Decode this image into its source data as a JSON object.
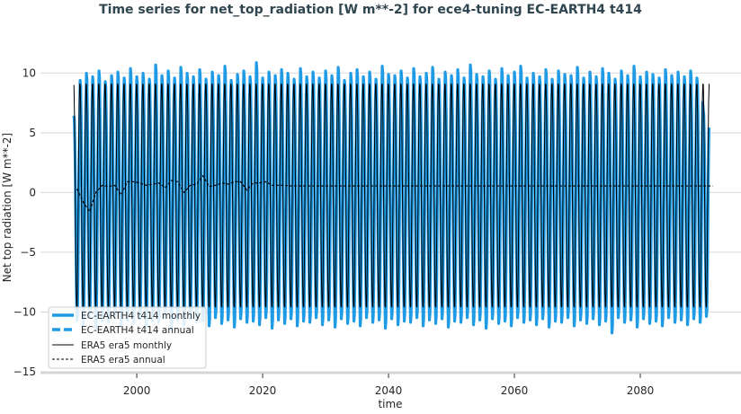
{
  "chart_data": {
    "type": "line",
    "title": "Time series for net_top_radiation [W m**-2] for ece4-tuning EC-EARTH4 t414",
    "xlabel": "time",
    "ylabel": "Net top radiation [W m**-2]",
    "xlim": [
      1984.7,
      2096
    ],
    "ylim": [
      -15,
      12.8
    ],
    "xticks": [
      2000,
      2020,
      2040,
      2060,
      2080
    ],
    "xtick_labels": [
      "2000",
      "2020",
      "2040",
      "2060",
      "2080"
    ],
    "yticks": [
      -15,
      -10,
      -5,
      0,
      5,
      10
    ],
    "ytick_labels": [
      "−15",
      "−10",
      "−5",
      "0",
      "5",
      "10"
    ],
    "grid": "horizontal",
    "legend_position": "bottom-left",
    "colors": {
      "ecearth": "#1f9be6",
      "era5": "#000000",
      "grid": "#d9d9d9"
    },
    "series": [
      {
        "name": "EC-EARTH4 t414 monthly",
        "style": "solid-thick",
        "start_year": 1990,
        "annual_peak_max": [
          6.5,
          9.5,
          10.1,
          9.8,
          10.3,
          9.4,
          9.9,
          10.2,
          9.7,
          10.5,
          9.8,
          10.1,
          9.6,
          10.8,
          9.9,
          10.3,
          9.7,
          10.6,
          10.1,
          9.8,
          10.4,
          9.6,
          10.2,
          9.9,
          10.7,
          9.5,
          10.0,
          10.3,
          9.8,
          11.0,
          9.7,
          10.2,
          9.9,
          10.4,
          10.1,
          9.6,
          10.5,
          9.8,
          10.2,
          9.7,
          10.3,
          9.9,
          10.6,
          9.5,
          10.1,
          10.4,
          9.8,
          10.2,
          9.6,
          10.7,
          10.0,
          9.9,
          10.3,
          9.7,
          10.5,
          9.8,
          10.1,
          10.6,
          9.6,
          10.2,
          9.9,
          10.4,
          9.7,
          10.8,
          10.0,
          9.8,
          10.3,
          9.6,
          10.5,
          9.9,
          10.2,
          10.7,
          9.7,
          10.1,
          9.8,
          10.4,
          9.6,
          10.3,
          10.0,
          9.9,
          10.6,
          9.7,
          10.2,
          9.8,
          10.5,
          10.1,
          9.6,
          10.3,
          9.9,
          10.7,
          9.8,
          10.2,
          10.0,
          9.7,
          10.4,
          9.9,
          10.2,
          9.8,
          10.3,
          9.7,
          7.0
        ],
        "annual_trough_min": [
          -10.8,
          -11.2,
          -10.6,
          -11.5,
          -10.9,
          -11.0,
          -10.5,
          -11.3,
          -10.8,
          -11.1,
          -10.7,
          -11.4,
          -10.9,
          -11.0,
          -10.6,
          -11.6,
          -10.8,
          -11.2,
          -10.7,
          -11.0,
          -10.9,
          -11.3,
          -10.6,
          -11.1,
          -10.8,
          -11.4,
          -10.7,
          -11.0,
          -10.9,
          -11.2,
          -10.6,
          -11.5,
          -10.8,
          -11.1,
          -10.7,
          -11.3,
          -10.9,
          -11.0,
          -10.6,
          -11.2,
          -10.8,
          -11.4,
          -10.7,
          -11.1,
          -10.9,
          -11.3,
          -10.6,
          -11.0,
          -10.8,
          -11.5,
          -10.7,
          -11.2,
          -10.9,
          -11.0,
          -10.6,
          -11.3,
          -10.8,
          -11.1,
          -10.7,
          -11.4,
          -10.9,
          -11.0,
          -10.6,
          -11.2,
          -10.8,
          -11.5,
          -10.7,
          -11.1,
          -10.9,
          -11.3,
          -10.6,
          -11.0,
          -10.8,
          -11.2,
          -10.7,
          -11.4,
          -10.9,
          -11.0,
          -10.6,
          -11.3,
          -10.8,
          -11.1,
          -10.7,
          -11.2,
          -10.9,
          -11.9,
          -10.6,
          -11.0,
          -10.8,
          -11.4,
          -10.7,
          -11.1,
          -10.9,
          -11.3,
          -10.6,
          -11.0,
          -10.8,
          -11.2,
          -10.7,
          -11.0,
          -10.5
        ]
      },
      {
        "name": "EC-EARTH4 t414 annual",
        "style": "dashed-thick"
      },
      {
        "name": "ERA5 era5 monthly",
        "style": "solid-thin",
        "start_year": 1990,
        "end_year": 2091,
        "monthly_cycle": [
          9.0,
          6.5,
          1.5,
          -3.5,
          -7.5,
          -9.5,
          -9.6,
          -6.5,
          -1.5,
          3.5,
          7.5,
          9.1
        ]
      },
      {
        "name": "ERA5 era5 annual",
        "style": "dashed-thin",
        "x": [
          1990,
          1991,
          1992,
          1993,
          1994,
          1995,
          1996,
          1997,
          1998,
          1999,
          2000,
          2001,
          2002,
          2003,
          2004,
          2005,
          2006,
          2007,
          2008,
          2009,
          2010,
          2011,
          2012,
          2013,
          2014,
          2015,
          2016,
          2017,
          2018,
          2019,
          2020,
          2021,
          2022,
          2023,
          2024,
          2091
        ],
        "y": [
          0.3,
          -0.8,
          -1.6,
          0.0,
          0.6,
          0.5,
          0.6,
          -0.2,
          0.9,
          0.9,
          0.8,
          0.6,
          0.7,
          0.8,
          0.4,
          1.0,
          0.9,
          0.0,
          0.6,
          0.7,
          1.4,
          0.5,
          0.6,
          0.8,
          0.7,
          0.9,
          0.9,
          0.2,
          0.8,
          0.8,
          0.9,
          0.6,
          0.6,
          0.6,
          0.55,
          0.55
        ]
      }
    ]
  }
}
